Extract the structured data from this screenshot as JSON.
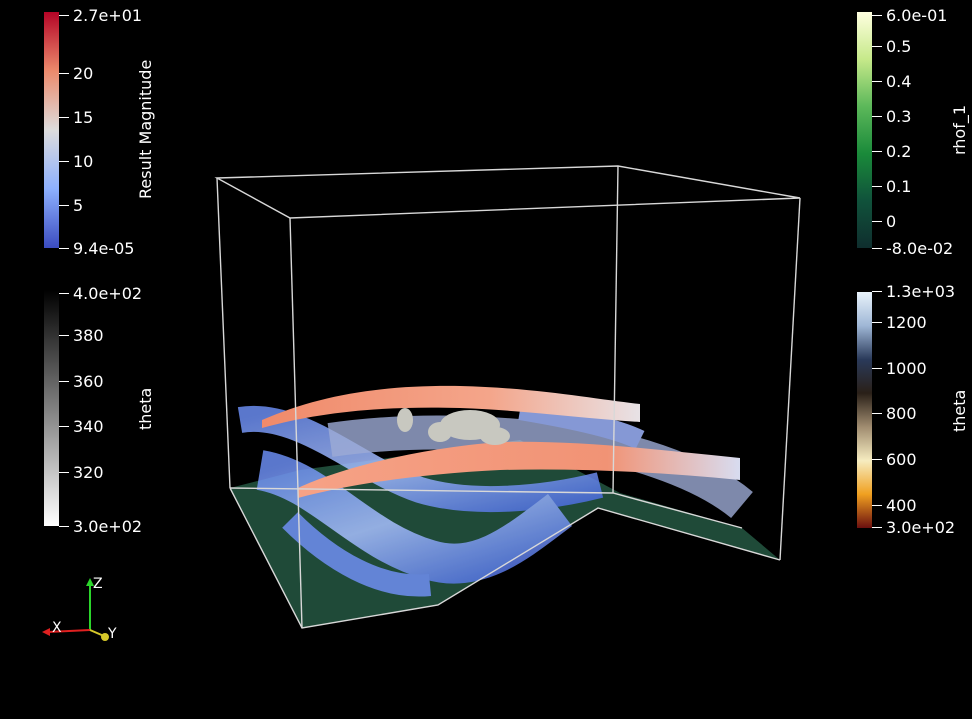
{
  "colorbars": {
    "result_magnitude": {
      "title": "Result Magnitude",
      "ticks": [
        "2.7e+01",
        "20",
        "15",
        "10",
        "5",
        "9.4e-05"
      ],
      "colors": [
        "#b40426",
        "#ec8a6c",
        "#dddcdc",
        "#8db0fe",
        "#3b4cc0"
      ]
    },
    "theta_left": {
      "title": "theta",
      "ticks": [
        "4.0e+02",
        "380",
        "360",
        "340",
        "320",
        "3.0e+02"
      ],
      "colors": [
        "#000000",
        "#ffffff"
      ]
    },
    "rhof": {
      "title": "rhof_1",
      "ticks": [
        "6.0e-01",
        "0.5",
        "0.4",
        "0.3",
        "0.2",
        "0.1",
        "0",
        "-8.0e-02"
      ],
      "colors": [
        "#ffffe0",
        "#c6e98a",
        "#5cb85a",
        "#1a8a3a",
        "#10523b",
        "#0f2e2e"
      ]
    },
    "theta_right": {
      "title": "theta",
      "ticks": [
        "1.3e+03",
        "1200",
        "1000",
        "800",
        "600",
        "400",
        "3.0e+02"
      ],
      "colors": [
        "#e9f3fb",
        "#9fb7d6",
        "#2a3a5a",
        "#2a2018",
        "#a08c70",
        "#f6ecc0",
        "#f0a020",
        "#6b0f0f"
      ]
    }
  },
  "axes": {
    "x": "X",
    "y": "Y",
    "z": "Z"
  }
}
